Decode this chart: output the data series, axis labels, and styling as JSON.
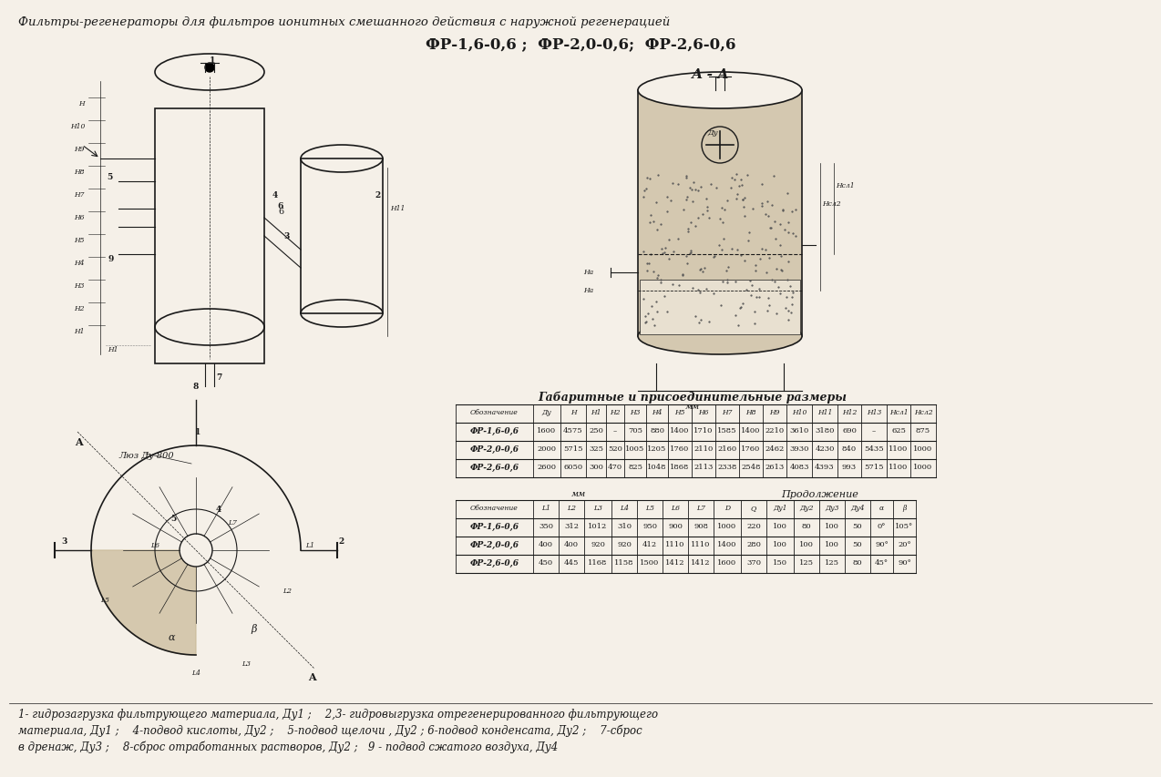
{
  "title_line1": "Фильтры-регенераторы для фильтров ионитных смешанного действия с наружной регенерацией",
  "title_line2": "ФР-1,6-0,6 ;  ФР-2,0-0,6;  ФР-2,6-0,6",
  "section_label": "А - А",
  "table1_title": "Габаритные и присоединительные размеры",
  "table1_mm_note": "мм",
  "table1_headers": [
    "Обозначение",
    "Ду",
    "Н",
    "Н1",
    "Н2",
    "Н3",
    "Н4",
    "Н5",
    "Н6",
    "Н7",
    "Н8",
    "Н9",
    "Н10",
    "Н11",
    "Н12",
    "Н13",
    "Нсл1",
    "Нсл2"
  ],
  "table1_rows": [
    [
      "ФР-1,6-0,6",
      "1600",
      "4575",
      "250",
      "–",
      "705",
      "880",
      "1400",
      "1710",
      "1585",
      "1400",
      "2210",
      "3610",
      "3180",
      "690",
      "–",
      "625",
      "875"
    ],
    [
      "ФР-2,0-0,6",
      "2000",
      "5715",
      "325",
      "520",
      "1005",
      "1205",
      "1760",
      "2110",
      "2160",
      "1760",
      "2462",
      "3930",
      "4230",
      "840",
      "5435",
      "1100",
      "1000"
    ],
    [
      "ФР-2,6-0,6",
      "2600",
      "6050",
      "300",
      "470",
      "825",
      "1048",
      "1868",
      "2113",
      "2338",
      "2548",
      "2613",
      "4083",
      "4393",
      "993",
      "5715",
      "1100",
      "1000"
    ]
  ],
  "table2_mm_note": "мм",
  "table2_cont_note": "Продолжение",
  "table2_headers": [
    "Обозначение",
    "L1",
    "L2",
    "L3",
    "L4",
    "L5",
    "L6",
    "L7",
    "D",
    "Q",
    "Ду1",
    "Ду2",
    "Ду3",
    "Ду4",
    "α",
    "β"
  ],
  "table2_rows": [
    [
      "ФР-1,6-0,6",
      "350",
      "312",
      "1012",
      "310",
      "950",
      "900",
      "908",
      "1000",
      "220",
      "100",
      "80",
      "100",
      "50",
      "0°",
      "105°"
    ],
    [
      "ФР-2,0-0,6",
      "400",
      "400",
      "920",
      "920",
      "412",
      "1110",
      "1110",
      "1400",
      "280",
      "100",
      "100",
      "100",
      "50",
      "90°",
      "20°"
    ],
    [
      "ФР-2,6-0,6",
      "450",
      "445",
      "1168",
      "1158",
      "1500",
      "1412",
      "1412",
      "1600",
      "370",
      "150",
      "125",
      "125",
      "80",
      "45°",
      "90°"
    ]
  ],
  "footnote_line1": "1- гидрозагрузка фильтрующего материала, Ду1 ;    2,3- гидровыгрузка отрегенерированного фильтрующего",
  "footnote_line2": "материала, Ду1 ;    4-подвод кислоты, Ду2 ;    5-подвод щелочи , Ду2 ; 6-подвод конденсата, Ду2 ;    7-сброс",
  "footnote_line3": "в дренаж, Ду3 ;    8-сброс отработанных растворов, Ду2 ;   9 - подвод сжатого воздуха, Ду4",
  "bg_color": "#f5f0e8",
  "drawing_color": "#1a1a1a",
  "table_line_color": "#1a1a1a"
}
